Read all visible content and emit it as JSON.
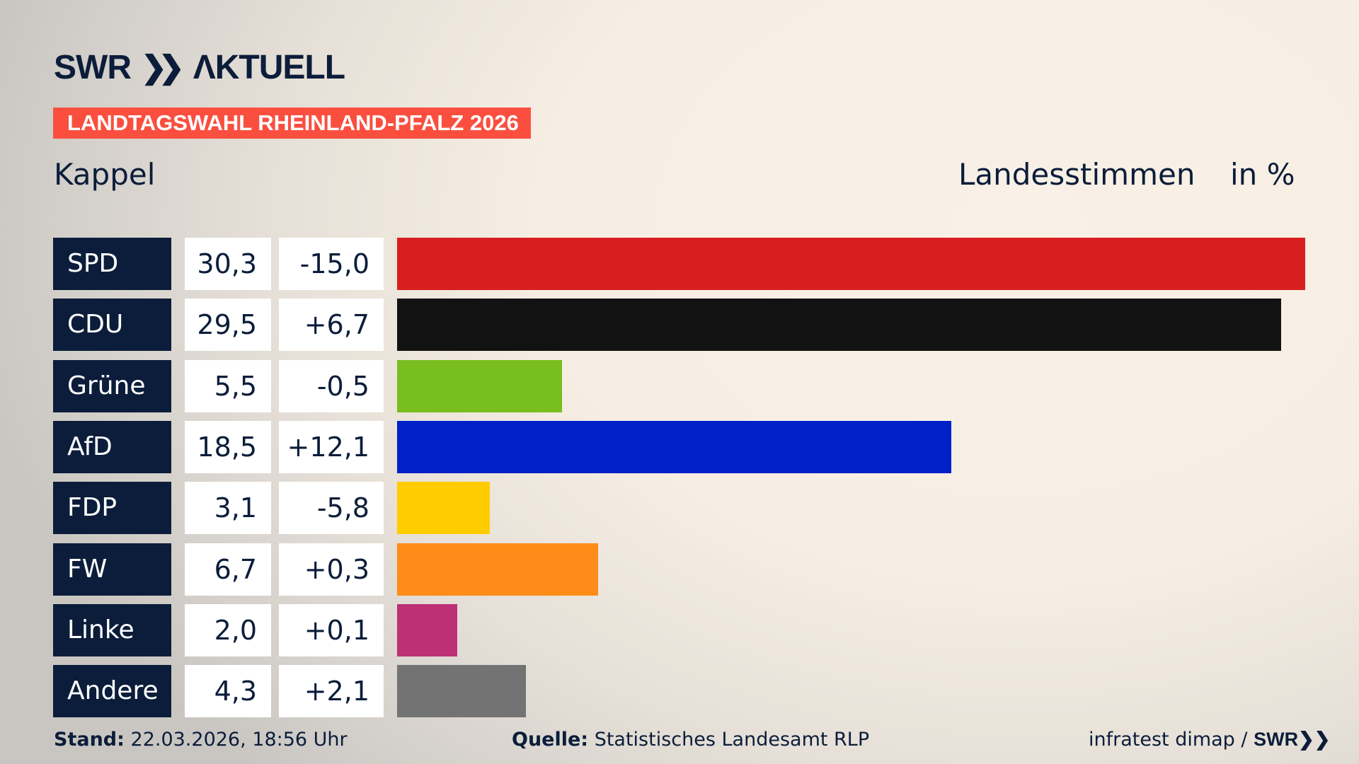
{
  "header": {
    "logo": "SWR AKTUELL",
    "tag": "LANDTAGSWAHL RHEINLAND-PFALZ 2026",
    "place": "Kappel",
    "measure": "Landesstimmen",
    "unit": "in %"
  },
  "chart_data": {
    "type": "bar",
    "orientation": "horizontal",
    "categories": [
      "SPD",
      "CDU",
      "Grüne",
      "AfD",
      "FDP",
      "FW",
      "Linke",
      "Andere"
    ],
    "values": [
      30.3,
      29.5,
      5.5,
      18.5,
      3.1,
      6.7,
      2.0,
      4.3
    ],
    "value_labels": [
      "30,3",
      "29,5",
      "5,5",
      "18,5",
      "3,1",
      "6,7",
      "2,0",
      "4,3"
    ],
    "diff_labels": [
      "-15,0",
      "+6,7",
      "-0,5",
      "+12,1",
      "-5,8",
      "+0,3",
      "+0,1",
      "+2,1"
    ],
    "diffs": [
      -15.0,
      6.7,
      -0.5,
      12.1,
      -5.8,
      0.3,
      0.1,
      2.1
    ],
    "colors": [
      "#d81f20",
      "#121212",
      "#78be1e",
      "#0020c8",
      "#ffcc00",
      "#ff8c18",
      "#bd3075",
      "#737373"
    ],
    "grid": false
  },
  "footer": {
    "stand_label": "Stand:",
    "stand": "22.03.2026, 18:56 Uhr",
    "source_label": "Quelle:",
    "source": "Statistisches Landesamt RLP",
    "credit": "infratest dimap /",
    "credit_logo": "SWR"
  }
}
